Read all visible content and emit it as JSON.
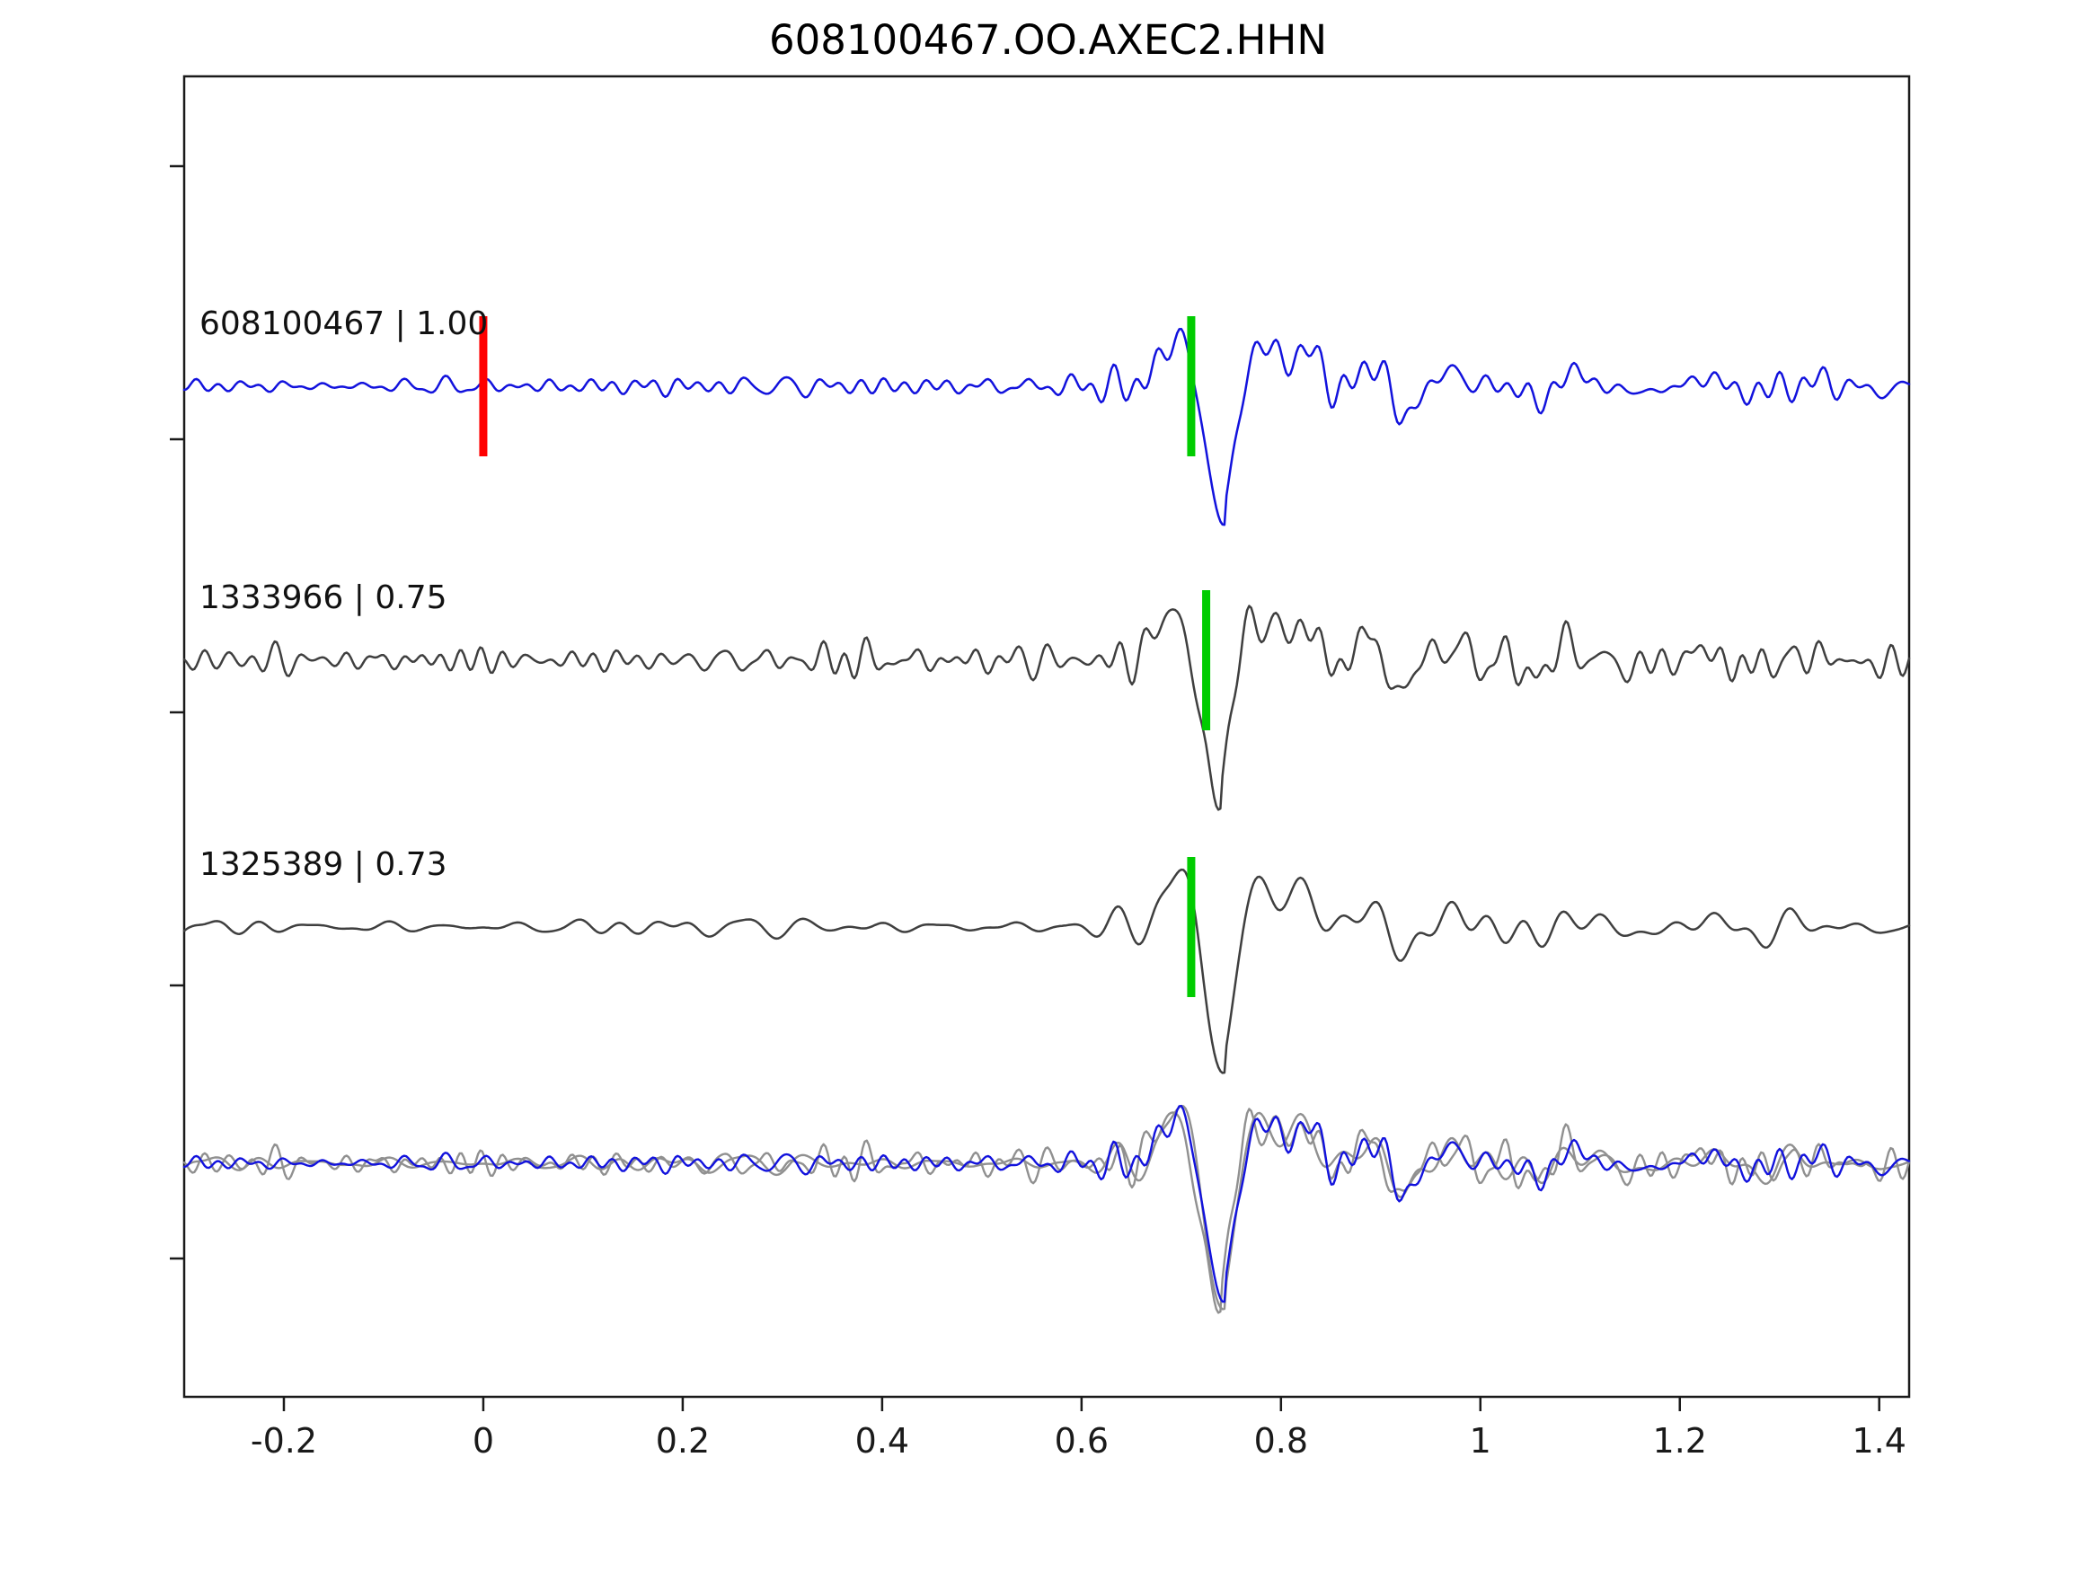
{
  "title": "608100467.OO.AXEC2.HHN",
  "axes": {
    "x_tick_labels": [
      "-0.2",
      "0",
      "0.2",
      "0.4",
      "0.6",
      "0.8",
      "1",
      "1.2",
      "1.4"
    ],
    "x_tick_values": [
      -0.2,
      0,
      0.2,
      0.4,
      0.6,
      0.8,
      1,
      1.2,
      1.4
    ],
    "x_range": [
      -0.3,
      1.43
    ],
    "y_ticks_unlabeled": 5
  },
  "chart_data": {
    "type": "line",
    "title": "608100467.OO.AXEC2.HHN",
    "xlabel": "",
    "ylabel": "",
    "x_range": [
      -0.3,
      1.43
    ],
    "x_ticks": [
      -0.2,
      0,
      0.2,
      0.4,
      0.6,
      0.8,
      1,
      1.2,
      1.4
    ],
    "traces": [
      {
        "label": "608100467 | 1.00",
        "event_id": "608100467",
        "correlation": 1.0,
        "color": "#1212dd",
        "markers": [
          {
            "type": "origin-time",
            "color": "#ff0000",
            "t": 0.0
          },
          {
            "type": "pick",
            "color": "#00cc00",
            "t": 0.71
          }
        ],
        "synth": {
          "seed": 17,
          "noise_freq": [
            18,
            55
          ],
          "noise_amp": 13,
          "event_t": 0.745,
          "event_amp": 165
        }
      },
      {
        "label": "1333966 | 0.75",
        "event_id": "1333966",
        "correlation": 0.75,
        "color": "#3f3f3f",
        "markers": [
          {
            "type": "pick",
            "color": "#00cc00",
            "t": 0.725
          }
        ],
        "synth": {
          "seed": 42,
          "noise_freq": [
            20,
            60
          ],
          "noise_amp": 19,
          "event_t": 0.74,
          "event_amp": 168
        }
      },
      {
        "label": "1325389 | 0.73",
        "event_id": "1325389",
        "correlation": 0.73,
        "color": "#3f3f3f",
        "markers": [
          {
            "type": "pick",
            "color": "#00cc00",
            "t": 0.71
          }
        ],
        "synth": {
          "seed": 93,
          "noise_freq": [
            10,
            30
          ],
          "noise_amp": 12,
          "event_t": 0.745,
          "event_amp": 168
        }
      }
    ],
    "overlay": {
      "members": [
        {
          "trace_index": 1,
          "color": "#909090"
        },
        {
          "trace_index": 2,
          "color": "#909090"
        },
        {
          "trace_index": 0,
          "color": "#1212dd"
        }
      ]
    }
  }
}
